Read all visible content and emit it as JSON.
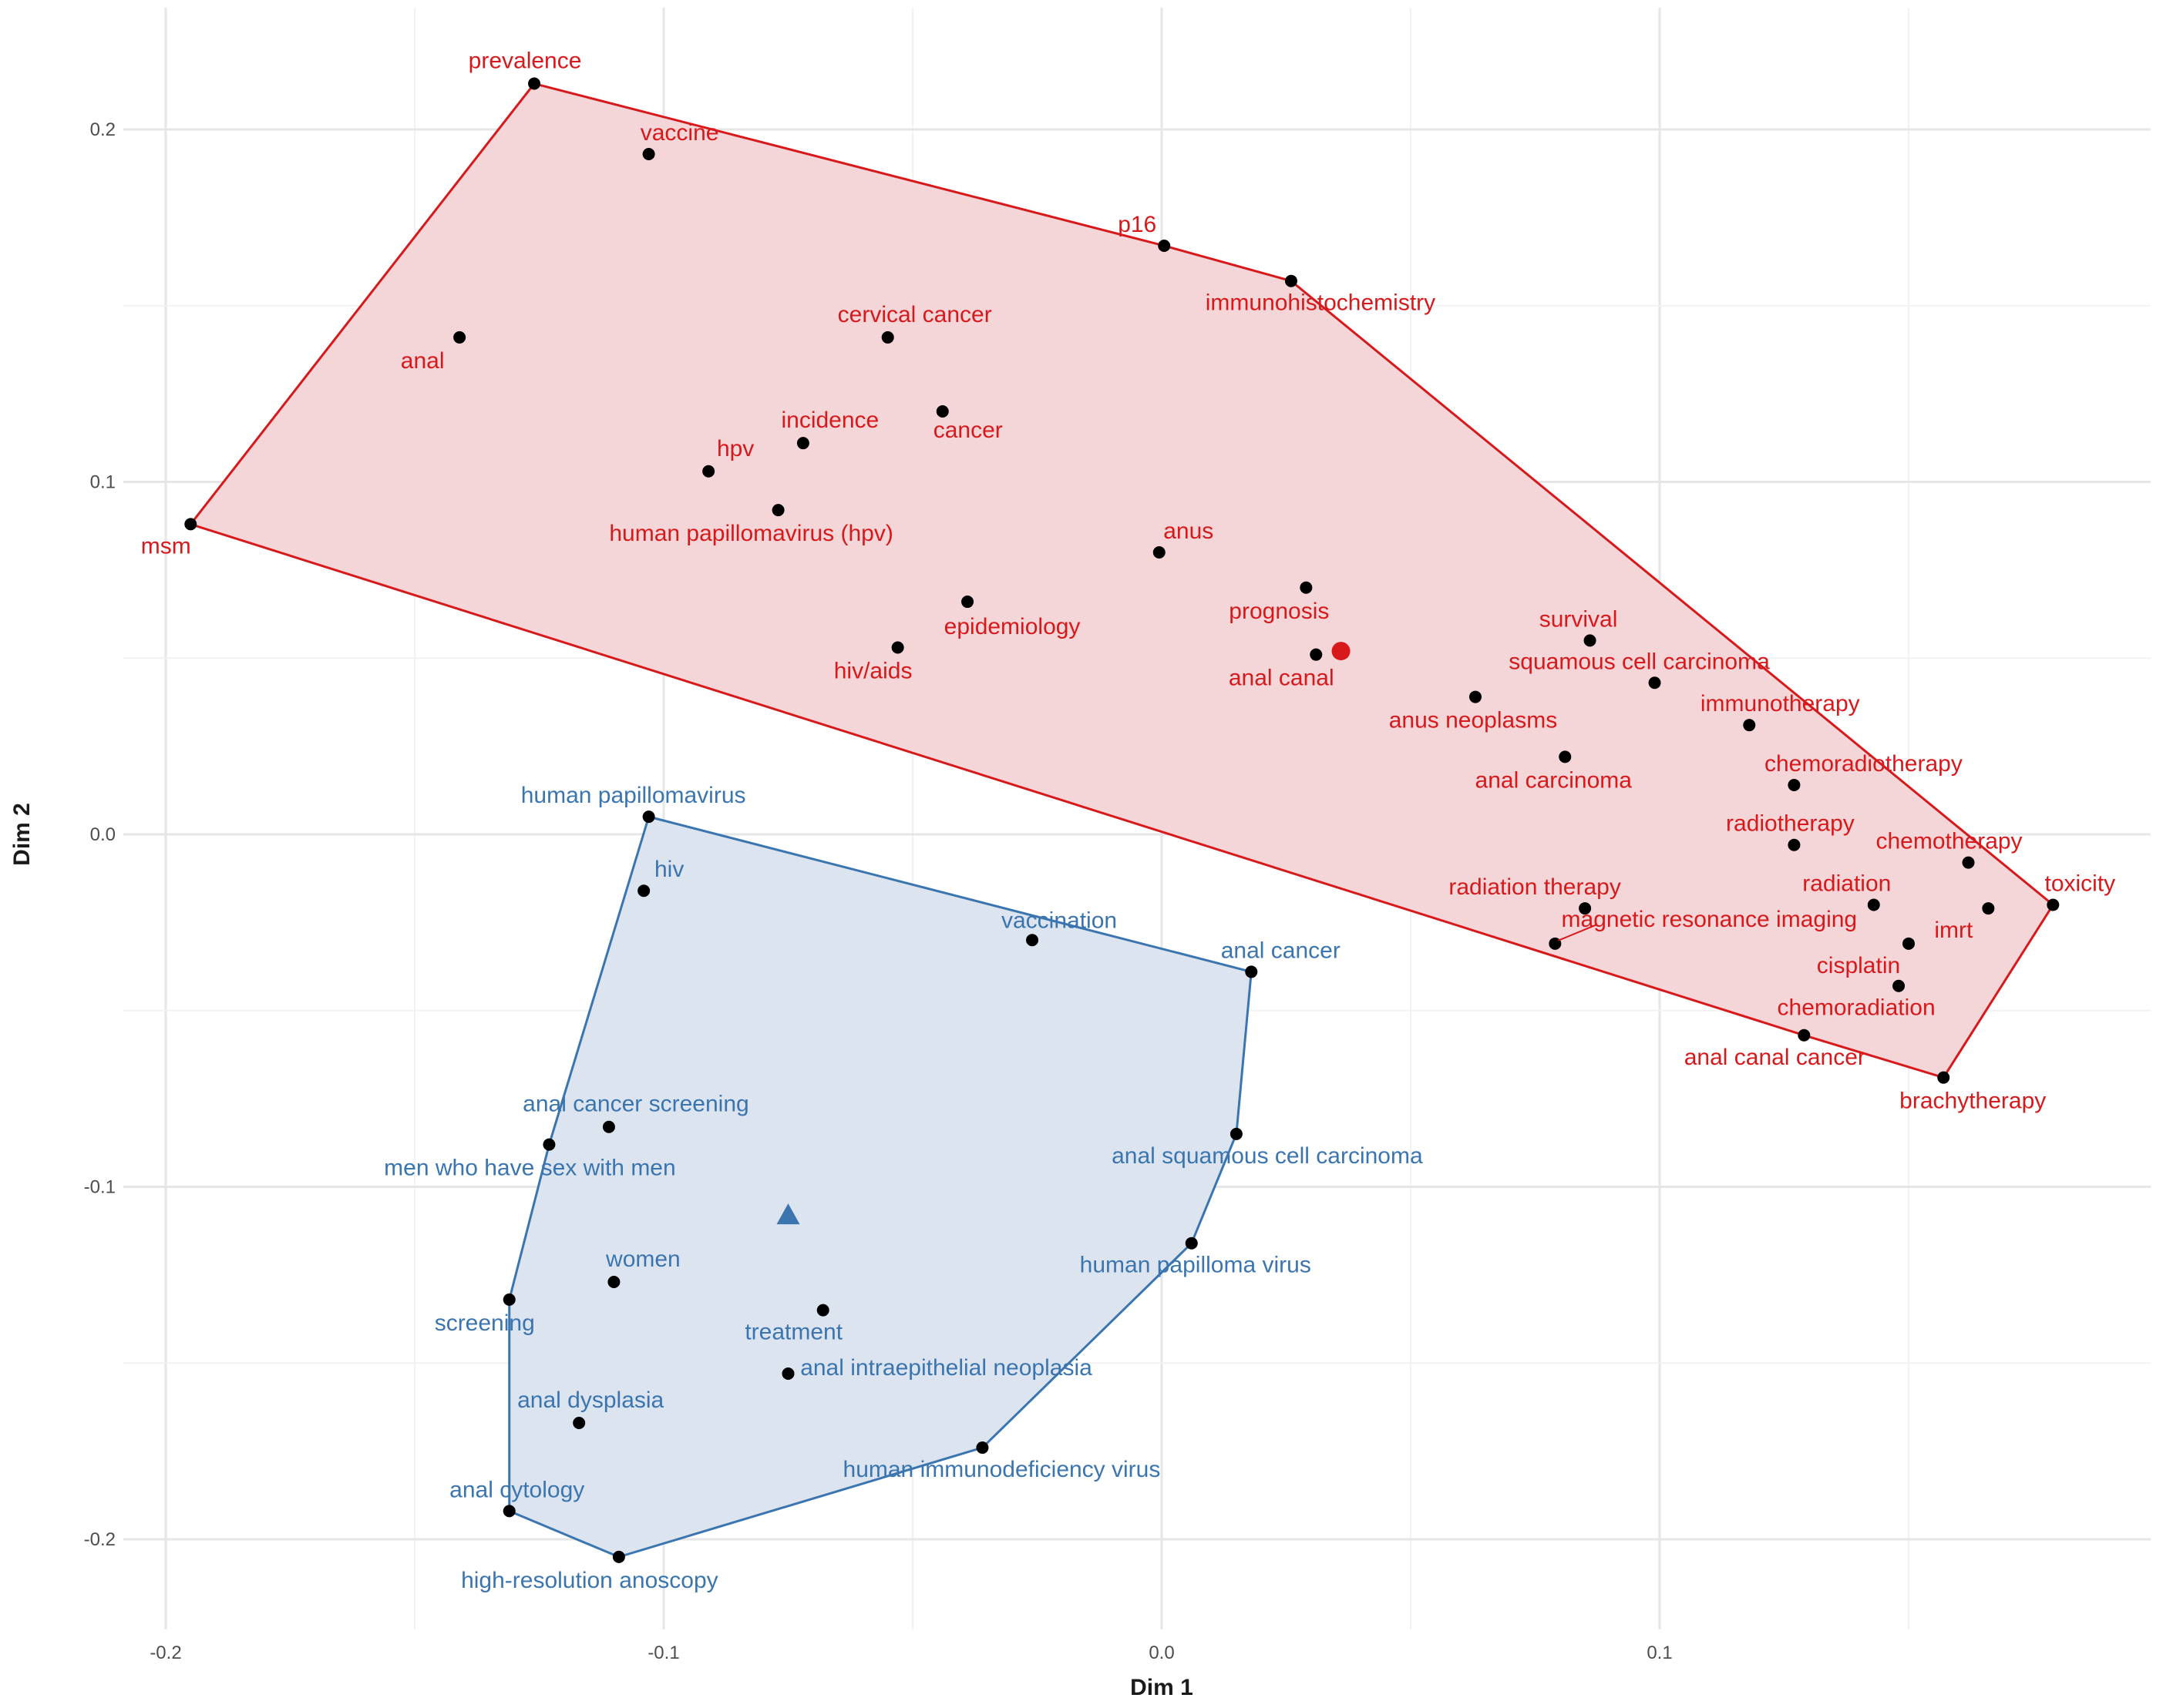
{
  "chart_data": {
    "type": "scatter",
    "xlabel": "Dim 1",
    "ylabel": "Dim 2",
    "xlim": [
      -0.2,
      0.19
    ],
    "ylim": [
      -0.21,
      0.22
    ],
    "x_ticks": [
      -0.2,
      -0.1,
      0.0,
      0.1
    ],
    "x_tick_labels": [
      "-0.2",
      "-0.1",
      "0.0",
      "0.1"
    ],
    "y_ticks": [
      -0.2,
      -0.1,
      0.0,
      0.1,
      0.2
    ],
    "y_tick_labels": [
      "-0.2",
      "-0.1",
      "0.0",
      "0.1",
      "0.2"
    ],
    "grid": true,
    "colors": {
      "red": "#d7191c",
      "red_fill": "#f4d6d8",
      "blue": "#3b75b0",
      "blue_fill": "#dce4ef",
      "point": "#000000"
    },
    "series": [
      {
        "color": "#d7191c",
        "centroid": {
          "x": 0.036,
          "y": 0.052,
          "marker": "circle"
        },
        "points": [
          {
            "label": "prevalence",
            "x": -0.126,
            "y": 0.213
          },
          {
            "label": "vaccine",
            "x": -0.103,
            "y": 0.193
          },
          {
            "label": "p16",
            "x": 0.0005,
            "y": 0.167
          },
          {
            "label": "immunohistochemistry",
            "x": 0.026,
            "y": 0.157
          },
          {
            "label": "cervical cancer",
            "x": -0.055,
            "y": 0.141
          },
          {
            "label": "anal",
            "x": -0.141,
            "y": 0.141
          },
          {
            "label": "incidence",
            "x": -0.072,
            "y": 0.111
          },
          {
            "label": "cancer",
            "x": -0.044,
            "y": 0.12
          },
          {
            "label": "hpv",
            "x": -0.091,
            "y": 0.103
          },
          {
            "label": "human papillomavirus (hpv)",
            "x": -0.077,
            "y": 0.092
          },
          {
            "label": "msm",
            "x": -0.195,
            "y": 0.088
          },
          {
            "label": "anus",
            "x": -0.0005,
            "y": 0.08
          },
          {
            "label": "prognosis",
            "x": 0.029,
            "y": 0.07
          },
          {
            "label": "epidemiology",
            "x": -0.039,
            "y": 0.066
          },
          {
            "label": "hiv/aids",
            "x": -0.053,
            "y": 0.053
          },
          {
            "label": "anal canal",
            "x": 0.031,
            "y": 0.051
          },
          {
            "label": "survival",
            "x": 0.086,
            "y": 0.055
          },
          {
            "label": "squamous cell carcinoma",
            "x": 0.099,
            "y": 0.043
          },
          {
            "label": "anus neoplasms",
            "x": 0.063,
            "y": 0.039
          },
          {
            "label": "immunotherapy",
            "x": 0.118,
            "y": 0.031
          },
          {
            "label": "anal carcinoma",
            "x": 0.081,
            "y": 0.022
          },
          {
            "label": "chemoradiotherapy",
            "x": 0.127,
            "y": 0.014
          },
          {
            "label": "radiotherapy",
            "x": 0.127,
            "y": -0.003
          },
          {
            "label": "chemotherapy",
            "x": 0.162,
            "y": -0.008
          },
          {
            "label": "toxicity",
            "x": 0.179,
            "y": -0.02
          },
          {
            "label": "radiation",
            "x": 0.143,
            "y": -0.02
          },
          {
            "label": "imrt",
            "x": 0.166,
            "y": -0.021
          },
          {
            "label": "radiation therapy",
            "x": 0.085,
            "y": -0.021
          },
          {
            "label": "magnetic resonance imaging",
            "x": 0.079,
            "y": -0.031
          },
          {
            "label": "cisplatin",
            "x": 0.15,
            "y": -0.031
          },
          {
            "label": "chemoradiation",
            "x": 0.148,
            "y": -0.043
          },
          {
            "label": "anal canal cancer",
            "x": 0.129,
            "y": -0.057
          },
          {
            "label": "brachytherapy",
            "x": 0.157,
            "y": -0.069
          }
        ]
      },
      {
        "color": "#3b75b0",
        "centroid": {
          "x": -0.075,
          "y": -0.108,
          "marker": "triangle"
        },
        "points": [
          {
            "label": "human papillomavirus",
            "x": -0.103,
            "y": 0.005
          },
          {
            "label": "hiv",
            "x": -0.104,
            "y": -0.016
          },
          {
            "label": "vaccination",
            "x": -0.026,
            "y": -0.03
          },
          {
            "label": "anal cancer",
            "x": 0.018,
            "y": -0.039
          },
          {
            "label": "anal cancer screening",
            "x": -0.111,
            "y": -0.083
          },
          {
            "label": "men who have sex with men",
            "x": -0.123,
            "y": -0.088
          },
          {
            "label": "anal squamous cell carcinoma",
            "x": 0.015,
            "y": -0.085
          },
          {
            "label": "human papilloma virus",
            "x": 0.006,
            "y": -0.116
          },
          {
            "label": "women",
            "x": -0.11,
            "y": -0.127
          },
          {
            "label": "screening",
            "x": -0.131,
            "y": -0.132
          },
          {
            "label": "treatment",
            "x": -0.068,
            "y": -0.135
          },
          {
            "label": "anal intraepithelial neoplasia",
            "x": -0.075,
            "y": -0.153
          },
          {
            "label": "anal dysplasia",
            "x": -0.117,
            "y": -0.167
          },
          {
            "label": "human immunodeficiency virus",
            "x": -0.036,
            "y": -0.174
          },
          {
            "label": "anal cytology",
            "x": -0.131,
            "y": -0.192
          },
          {
            "label": "high-resolution anoscopy",
            "x": -0.109,
            "y": -0.205
          }
        ]
      }
    ]
  }
}
